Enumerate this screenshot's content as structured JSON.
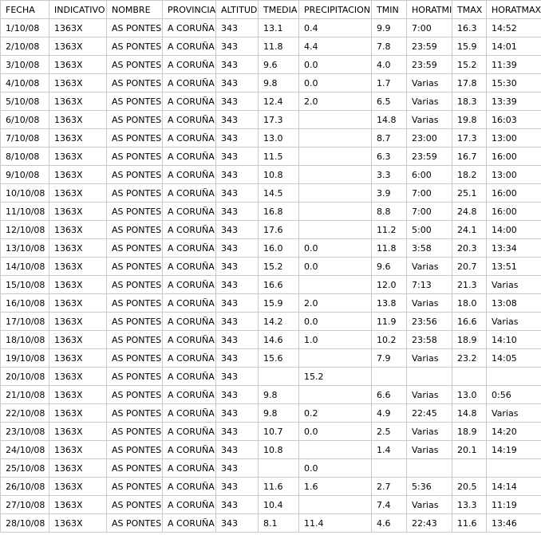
{
  "table": {
    "station": {
      "indicativo": "1363X",
      "nombre": "AS PONTES",
      "provincia": "A CORUÑA",
      "altitud": "343"
    },
    "columns": [
      {
        "key": "fecha",
        "label": "FECHA"
      },
      {
        "key": "indicativo",
        "label": "INDICATIVO"
      },
      {
        "key": "nombre",
        "label": "NOMBRE"
      },
      {
        "key": "provincia",
        "label": "PROVINCIA"
      },
      {
        "key": "altitud",
        "label": "ALTITUD"
      },
      {
        "key": "tmedia",
        "label": "TMEDIA"
      },
      {
        "key": "precipitacion",
        "label": "PRECIPITACION"
      },
      {
        "key": "tmin",
        "label": "TMIN"
      },
      {
        "key": "horatmin",
        "label": "HORATMIN"
      },
      {
        "key": "tmax",
        "label": "TMAX"
      },
      {
        "key": "horatmax",
        "label": "HORATMAX"
      }
    ],
    "rows": [
      [
        "1/10/08",
        "1363X",
        "AS PONTES",
        "A CORUÑA",
        "343",
        "13.1",
        "0.4",
        "9.9",
        "7:00",
        "16.3",
        "14:52"
      ],
      [
        "2/10/08",
        "1363X",
        "AS PONTES",
        "A CORUÑA",
        "343",
        "11.8",
        "4.4",
        "7.8",
        "23:59",
        "15.9",
        "14:01"
      ],
      [
        "3/10/08",
        "1363X",
        "AS PONTES",
        "A CORUÑA",
        "343",
        "9.6",
        "0.0",
        "4.0",
        "23:59",
        "15.2",
        "11:39"
      ],
      [
        "4/10/08",
        "1363X",
        "AS PONTES",
        "A CORUÑA",
        "343",
        "9.8",
        "0.0",
        "1.7",
        "Varias",
        "17.8",
        "15:30"
      ],
      [
        "5/10/08",
        "1363X",
        "AS PONTES",
        "A CORUÑA",
        "343",
        "12.4",
        "2.0",
        "6.5",
        "Varias",
        "18.3",
        "13:39"
      ],
      [
        "6/10/08",
        "1363X",
        "AS PONTES",
        "A CORUÑA",
        "343",
        "17.3",
        "",
        "14.8",
        "Varias",
        "19.8",
        "16:03"
      ],
      [
        "7/10/08",
        "1363X",
        "AS PONTES",
        "A CORUÑA",
        "343",
        "13.0",
        "",
        "8.7",
        "23:00",
        "17.3",
        "13:00"
      ],
      [
        "8/10/08",
        "1363X",
        "AS PONTES",
        "A CORUÑA",
        "343",
        "11.5",
        "",
        "6.3",
        "23:59",
        "16.7",
        "16:00"
      ],
      [
        "9/10/08",
        "1363X",
        "AS PONTES",
        "A CORUÑA",
        "343",
        "10.8",
        "",
        "3.3",
        "6:00",
        "18.2",
        "13:00"
      ],
      [
        "10/10/08",
        "1363X",
        "AS PONTES",
        "A CORUÑA",
        "343",
        "14.5",
        "",
        "3.9",
        "7:00",
        "25.1",
        "16:00"
      ],
      [
        "11/10/08",
        "1363X",
        "AS PONTES",
        "A CORUÑA",
        "343",
        "16.8",
        "",
        "8.8",
        "7:00",
        "24.8",
        "16:00"
      ],
      [
        "12/10/08",
        "1363X",
        "AS PONTES",
        "A CORUÑA",
        "343",
        "17.6",
        "",
        "11.2",
        "5:00",
        "24.1",
        "14:00"
      ],
      [
        "13/10/08",
        "1363X",
        "AS PONTES",
        "A CORUÑA",
        "343",
        "16.0",
        "0.0",
        "11.8",
        "3:58",
        "20.3",
        "13:34"
      ],
      [
        "14/10/08",
        "1363X",
        "AS PONTES",
        "A CORUÑA",
        "343",
        "15.2",
        "0.0",
        "9.6",
        "Varias",
        "20.7",
        "13:51"
      ],
      [
        "15/10/08",
        "1363X",
        "AS PONTES",
        "A CORUÑA",
        "343",
        "16.6",
        "",
        "12.0",
        "7:13",
        "21.3",
        "Varias"
      ],
      [
        "16/10/08",
        "1363X",
        "AS PONTES",
        "A CORUÑA",
        "343",
        "15.9",
        "2.0",
        "13.8",
        "Varias",
        "18.0",
        "13:08"
      ],
      [
        "17/10/08",
        "1363X",
        "AS PONTES",
        "A CORUÑA",
        "343",
        "14.2",
        "0.0",
        "11.9",
        "23:56",
        "16.6",
        "Varias"
      ],
      [
        "18/10/08",
        "1363X",
        "AS PONTES",
        "A CORUÑA",
        "343",
        "14.6",
        "1.0",
        "10.2",
        "23:58",
        "18.9",
        "14:10"
      ],
      [
        "19/10/08",
        "1363X",
        "AS PONTES",
        "A CORUÑA",
        "343",
        "15.6",
        "",
        "7.9",
        "Varias",
        "23.2",
        "14:05"
      ],
      [
        "20/10/08",
        "1363X",
        "AS PONTES",
        "A CORUÑA",
        "343",
        "",
        "15.2",
        "",
        "",
        "",
        ""
      ],
      [
        "21/10/08",
        "1363X",
        "AS PONTES",
        "A CORUÑA",
        "343",
        "9.8",
        "",
        "6.6",
        "Varias",
        "13.0",
        "0:56"
      ],
      [
        "22/10/08",
        "1363X",
        "AS PONTES",
        "A CORUÑA",
        "343",
        "9.8",
        "0.2",
        "4.9",
        "22:45",
        "14.8",
        "Varias"
      ],
      [
        "23/10/08",
        "1363X",
        "AS PONTES",
        "A CORUÑA",
        "343",
        "10.7",
        "0.0",
        "2.5",
        "Varias",
        "18.9",
        "14:20"
      ],
      [
        "24/10/08",
        "1363X",
        "AS PONTES",
        "A CORUÑA",
        "343",
        "10.8",
        "",
        "1.4",
        "Varias",
        "20.1",
        "14:19"
      ],
      [
        "25/10/08",
        "1363X",
        "AS PONTES",
        "A CORUÑA",
        "343",
        "",
        "0.0",
        "",
        "",
        "",
        ""
      ],
      [
        "26/10/08",
        "1363X",
        "AS PONTES",
        "A CORUÑA",
        "343",
        "11.6",
        "1.6",
        "2.7",
        "5:36",
        "20.5",
        "14:14"
      ],
      [
        "27/10/08",
        "1363X",
        "AS PONTES",
        "A CORUÑA",
        "343",
        "10.4",
        "",
        "7.4",
        "Varias",
        "13.3",
        "11:19"
      ],
      [
        "28/10/08",
        "1363X",
        "AS PONTES",
        "A CORUÑA",
        "343",
        "8.1",
        "11.4",
        "4.6",
        "22:43",
        "11.6",
        "13:46"
      ]
    ],
    "colors": {
      "border": "#c9c9c9",
      "text": "#000000",
      "background": "#ffffff"
    }
  }
}
